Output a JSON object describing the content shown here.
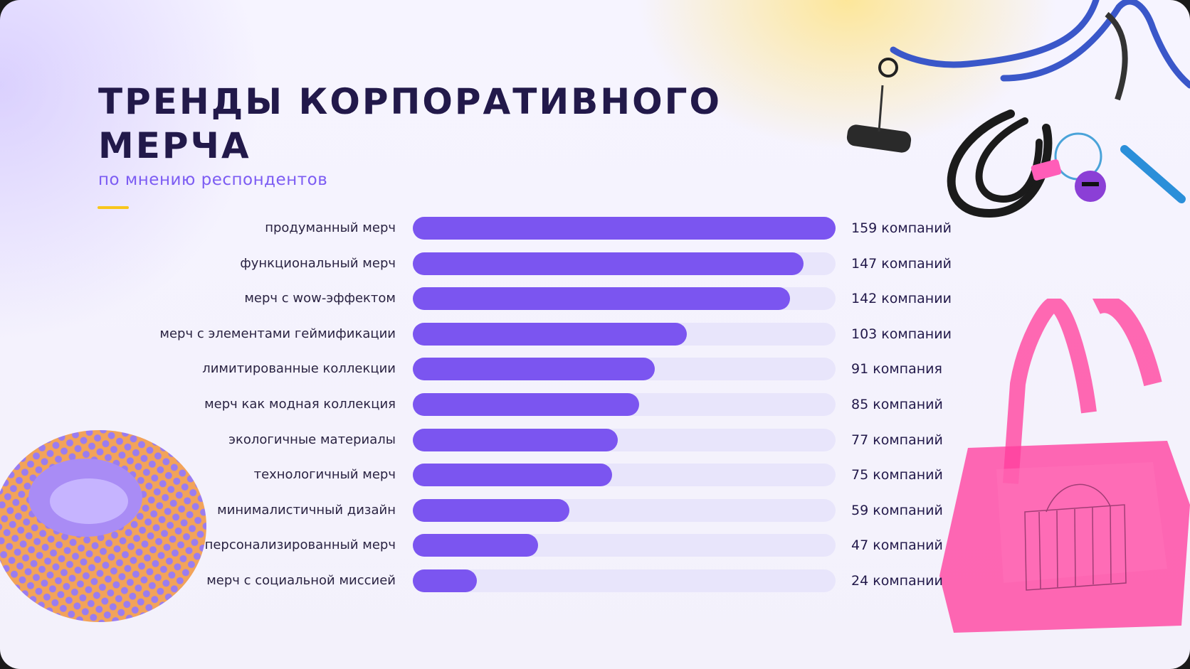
{
  "title_line1": "ТРЕНДЫ КОРПОРАТИВНОГО",
  "title_line2": "МЕРЧА",
  "subtitle": "по мнению респондентов",
  "colors": {
    "bar": "#7b55f0",
    "track": "#e8e5fb",
    "title": "#22194a",
    "subtitle": "#7c5cf3",
    "accent": "#f8c61d"
  },
  "chart_data": {
    "type": "bar",
    "orientation": "horizontal",
    "categories": [
      "продуманный мерч",
      "функциональный мерч",
      "мерч с wow-эффектом",
      "мерч с элементами геймификации",
      "лимитированные коллекции",
      "мерч как модная коллекция",
      "экологичные материалы",
      "технологичный мерч",
      "минималистичный дизайн",
      "персонализированный мерч",
      "мерч с социальной миссией"
    ],
    "values": [
      159,
      147,
      142,
      103,
      91,
      85,
      77,
      75,
      59,
      47,
      24
    ],
    "value_labels": [
      "159  компаний",
      "147 компаний",
      "142 компании",
      "103 компании",
      "91 компания",
      "85 компаний",
      "77 компаний",
      "75 компаний",
      "59 компаний",
      "47 компаний",
      "24 компании"
    ],
    "xlim": [
      0,
      159
    ],
    "grid": false
  },
  "decor_icons": [
    "lanyard-image",
    "tote-bag-image",
    "mesh-ring-image"
  ]
}
